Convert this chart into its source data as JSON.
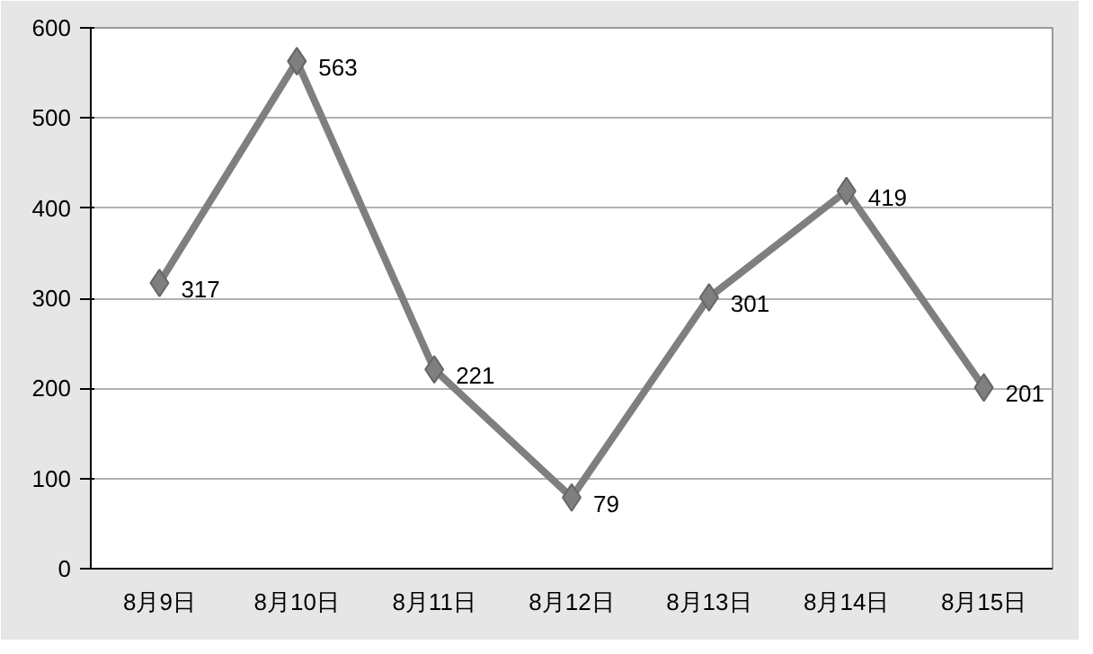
{
  "chart_data": {
    "type": "line",
    "categories": [
      "8月9日",
      "8月10日",
      "8月11日",
      "8月12日",
      "8月13日",
      "8月14日",
      "8月15日"
    ],
    "series": [
      {
        "color": "#7f7f7f",
        "values": [
          317,
          563,
          221,
          79,
          301,
          419,
          201
        ]
      }
    ],
    "ylim": [
      0,
      600
    ],
    "yticks": [
      0,
      100,
      200,
      300,
      400,
      500,
      600
    ],
    "grid": "y",
    "marker": "diamond",
    "line_style": "solid",
    "data_labels": true
  }
}
